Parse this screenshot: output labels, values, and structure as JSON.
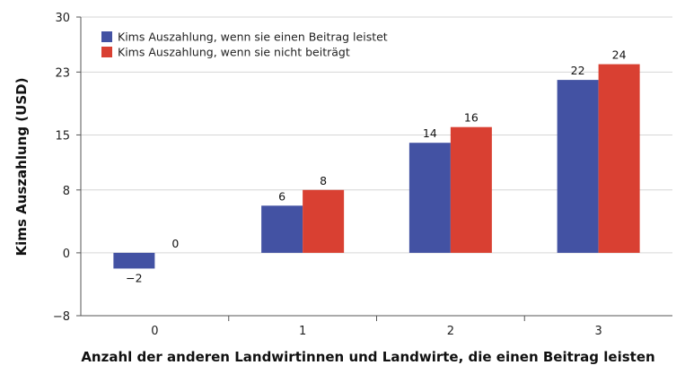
{
  "chart_data": {
    "type": "bar",
    "categories": [
      "0",
      "1",
      "2",
      "3"
    ],
    "series": [
      {
        "name": "Kims Auszahlung, wenn sie einen Beitrag leistet",
        "color": "#4352a3",
        "values": [
          -2,
          6,
          14,
          22
        ],
        "labels": [
          "−2",
          "6",
          "14",
          "22"
        ]
      },
      {
        "name": "Kims Auszahlung, wenn sie nicht beiträgt",
        "color": "#d94032",
        "values": [
          0,
          8,
          16,
          24
        ],
        "labels": [
          "0",
          "8",
          "16",
          "24"
        ]
      }
    ],
    "title": "",
    "xlabel": "Anzahl der anderen Landwirtinnen und Landwirte, die einen Beitrag leisten",
    "ylabel": "Kims Auszahlung (USD)",
    "ylim": [
      -8,
      30
    ],
    "yticks": [
      -8,
      0,
      8,
      15,
      23,
      30
    ],
    "ytick_labels": [
      "−8",
      "0",
      "8",
      "15",
      "23",
      "30"
    ],
    "grid": true,
    "legend_position": "top-left"
  }
}
